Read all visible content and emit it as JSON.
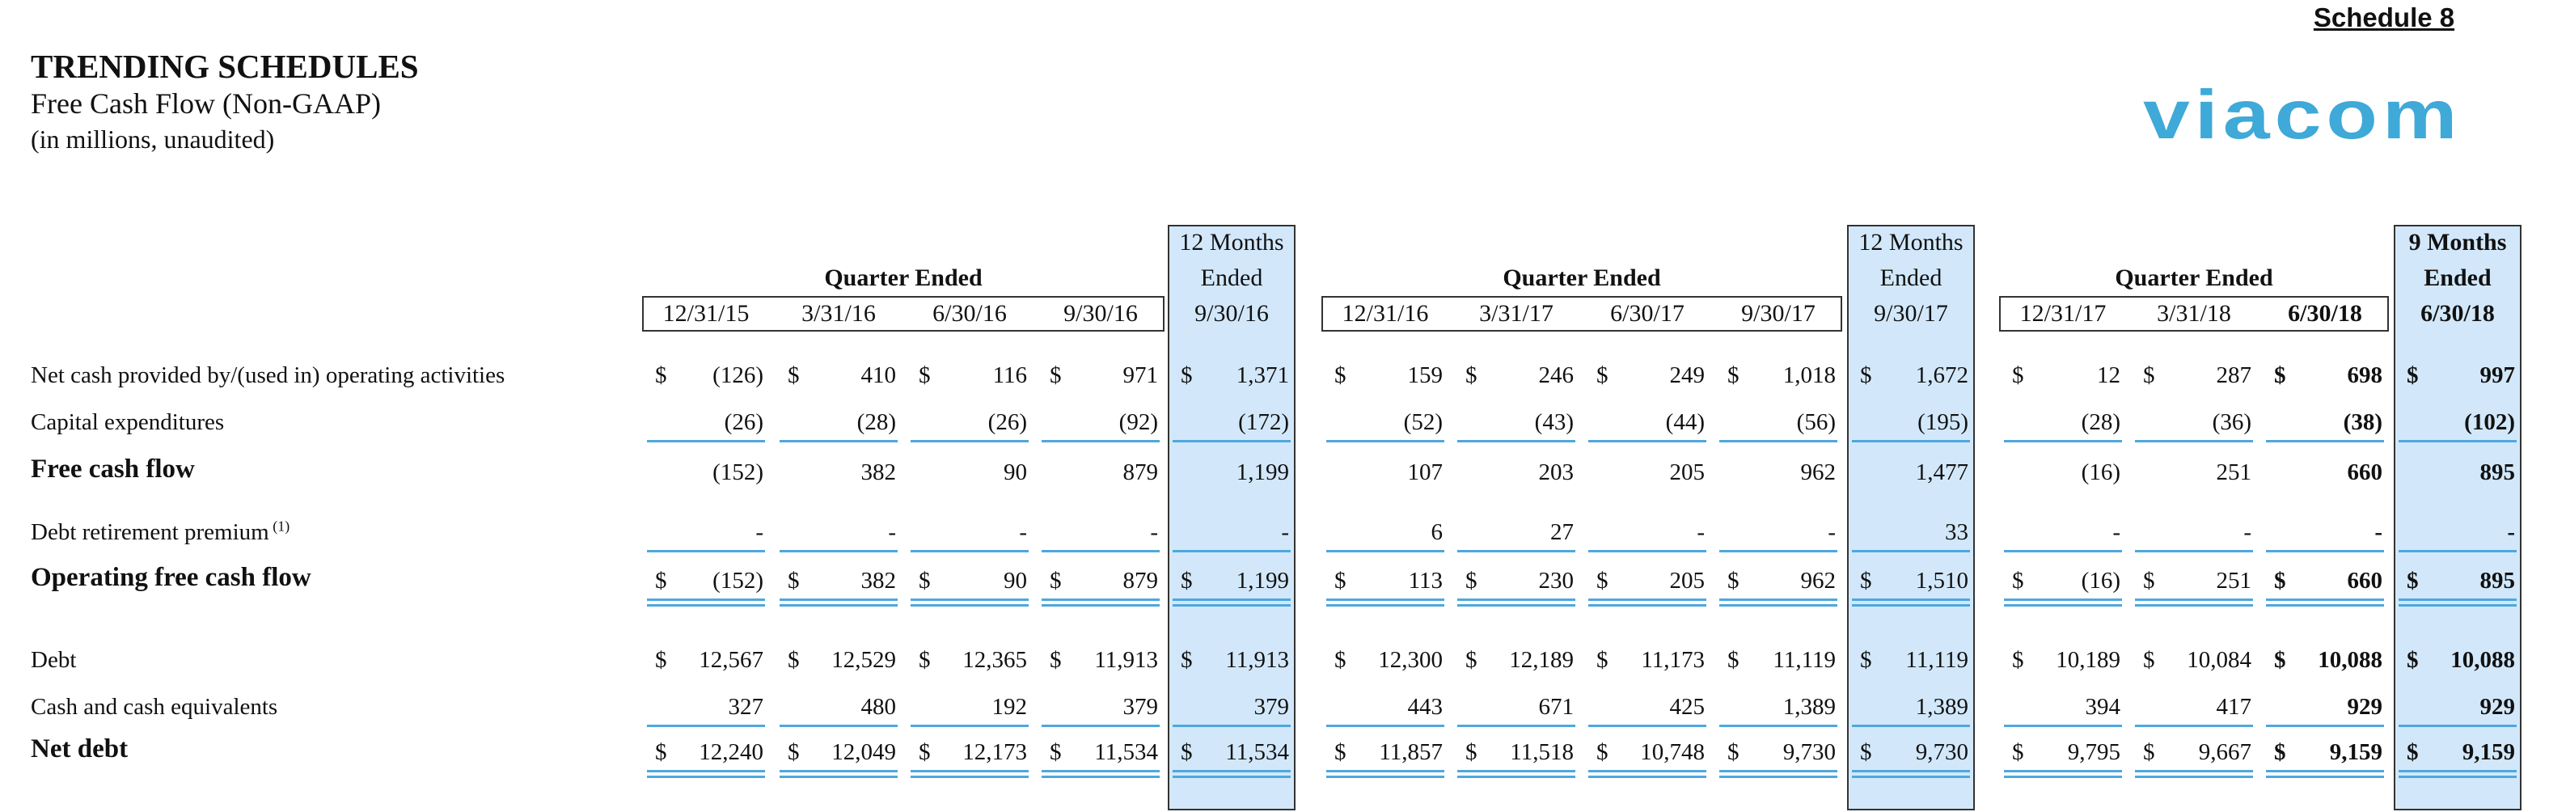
{
  "header": {
    "schedule": "Schedule 8",
    "title": "TRENDING SCHEDULES",
    "subtitle": "Free Cash Flow (Non-GAAP)",
    "units_note": "(in millions, unaudited)",
    "logo_text": "viacom",
    "brand_color": "#3fa9d8"
  },
  "colors": {
    "shade": "#d2e8fa",
    "rule": "#4ea7de"
  },
  "groups": [
    {
      "header": "Quarter Ended"
    },
    {
      "header": "Quarter Ended"
    },
    {
      "header": "Quarter Ended"
    }
  ],
  "total_headers": [
    {
      "line1": "12 Months",
      "line2": "Ended"
    },
    {
      "line1": "12 Months",
      "line2": "Ended"
    },
    {
      "line1": "9 Months",
      "line2": "Ended"
    }
  ],
  "columns": [
    {
      "date": "12/31/15",
      "bold": false
    },
    {
      "date": "3/31/16",
      "bold": false
    },
    {
      "date": "6/30/16",
      "bold": false
    },
    {
      "date": "9/30/16",
      "bold": false
    },
    {
      "date": "9/30/16",
      "bold": false
    },
    {
      "date": "12/31/16",
      "bold": false
    },
    {
      "date": "3/31/17",
      "bold": false
    },
    {
      "date": "6/30/17",
      "bold": false
    },
    {
      "date": "9/30/17",
      "bold": false
    },
    {
      "date": "9/30/17",
      "bold": false
    },
    {
      "date": "12/31/17",
      "bold": false
    },
    {
      "date": "3/31/18",
      "bold": false
    },
    {
      "date": "6/30/18",
      "bold": true
    },
    {
      "date": "6/30/18",
      "bold": true
    }
  ],
  "rows": [
    {
      "label": "Net cash provided by/(used in) operating activities",
      "bold": false,
      "dollar": true,
      "values": [
        "(126)",
        "410",
        "116",
        "971",
        "1,371",
        "159",
        "246",
        "249",
        "1,018",
        "1,672",
        "12",
        "287",
        "698",
        "997"
      ]
    },
    {
      "label": "Capital expenditures",
      "bold": false,
      "dollar": false,
      "values": [
        "(26)",
        "(28)",
        "(26)",
        "(92)",
        "(172)",
        "(52)",
        "(43)",
        "(44)",
        "(56)",
        "(195)",
        "(28)",
        "(36)",
        "(38)",
        "(102)"
      ]
    },
    {
      "label": "Free cash flow",
      "bold": true,
      "dollar": false,
      "values": [
        "(152)",
        "382",
        "90",
        "879",
        "1,199",
        "107",
        "203",
        "205",
        "962",
        "1,477",
        "(16)",
        "251",
        "660",
        "895"
      ]
    },
    {
      "label": "Debt retirement premium",
      "note": "(1)",
      "bold": false,
      "dollar": false,
      "values": [
        "-",
        "-",
        "-",
        "-",
        "-",
        "6",
        "27",
        "-",
        "-",
        "33",
        "-",
        "-",
        "-",
        "-"
      ]
    },
    {
      "label": "Operating free cash flow",
      "bold": true,
      "dollar": true,
      "values": [
        "(152)",
        "382",
        "90",
        "879",
        "1,199",
        "113",
        "230",
        "205",
        "962",
        "1,510",
        "(16)",
        "251",
        "660",
        "895"
      ]
    },
    {
      "label": "Debt",
      "bold": false,
      "dollar": true,
      "values": [
        "12,567",
        "12,529",
        "12,365",
        "11,913",
        "11,913",
        "12,300",
        "12,189",
        "11,173",
        "11,119",
        "11,119",
        "10,189",
        "10,084",
        "10,088",
        "10,088"
      ]
    },
    {
      "label": "Cash and cash equivalents",
      "bold": false,
      "dollar": false,
      "values": [
        "327",
        "480",
        "192",
        "379",
        "379",
        "443",
        "671",
        "425",
        "1,389",
        "1,389",
        "394",
        "417",
        "929",
        "929"
      ]
    },
    {
      "label": "Net debt",
      "bold": true,
      "dollar": true,
      "values": [
        "12,240",
        "12,049",
        "12,173",
        "11,534",
        "11,534",
        "11,857",
        "11,518",
        "10,748",
        "9,730",
        "9,730",
        "9,795",
        "9,667",
        "9,159",
        "9,159"
      ]
    }
  ]
}
